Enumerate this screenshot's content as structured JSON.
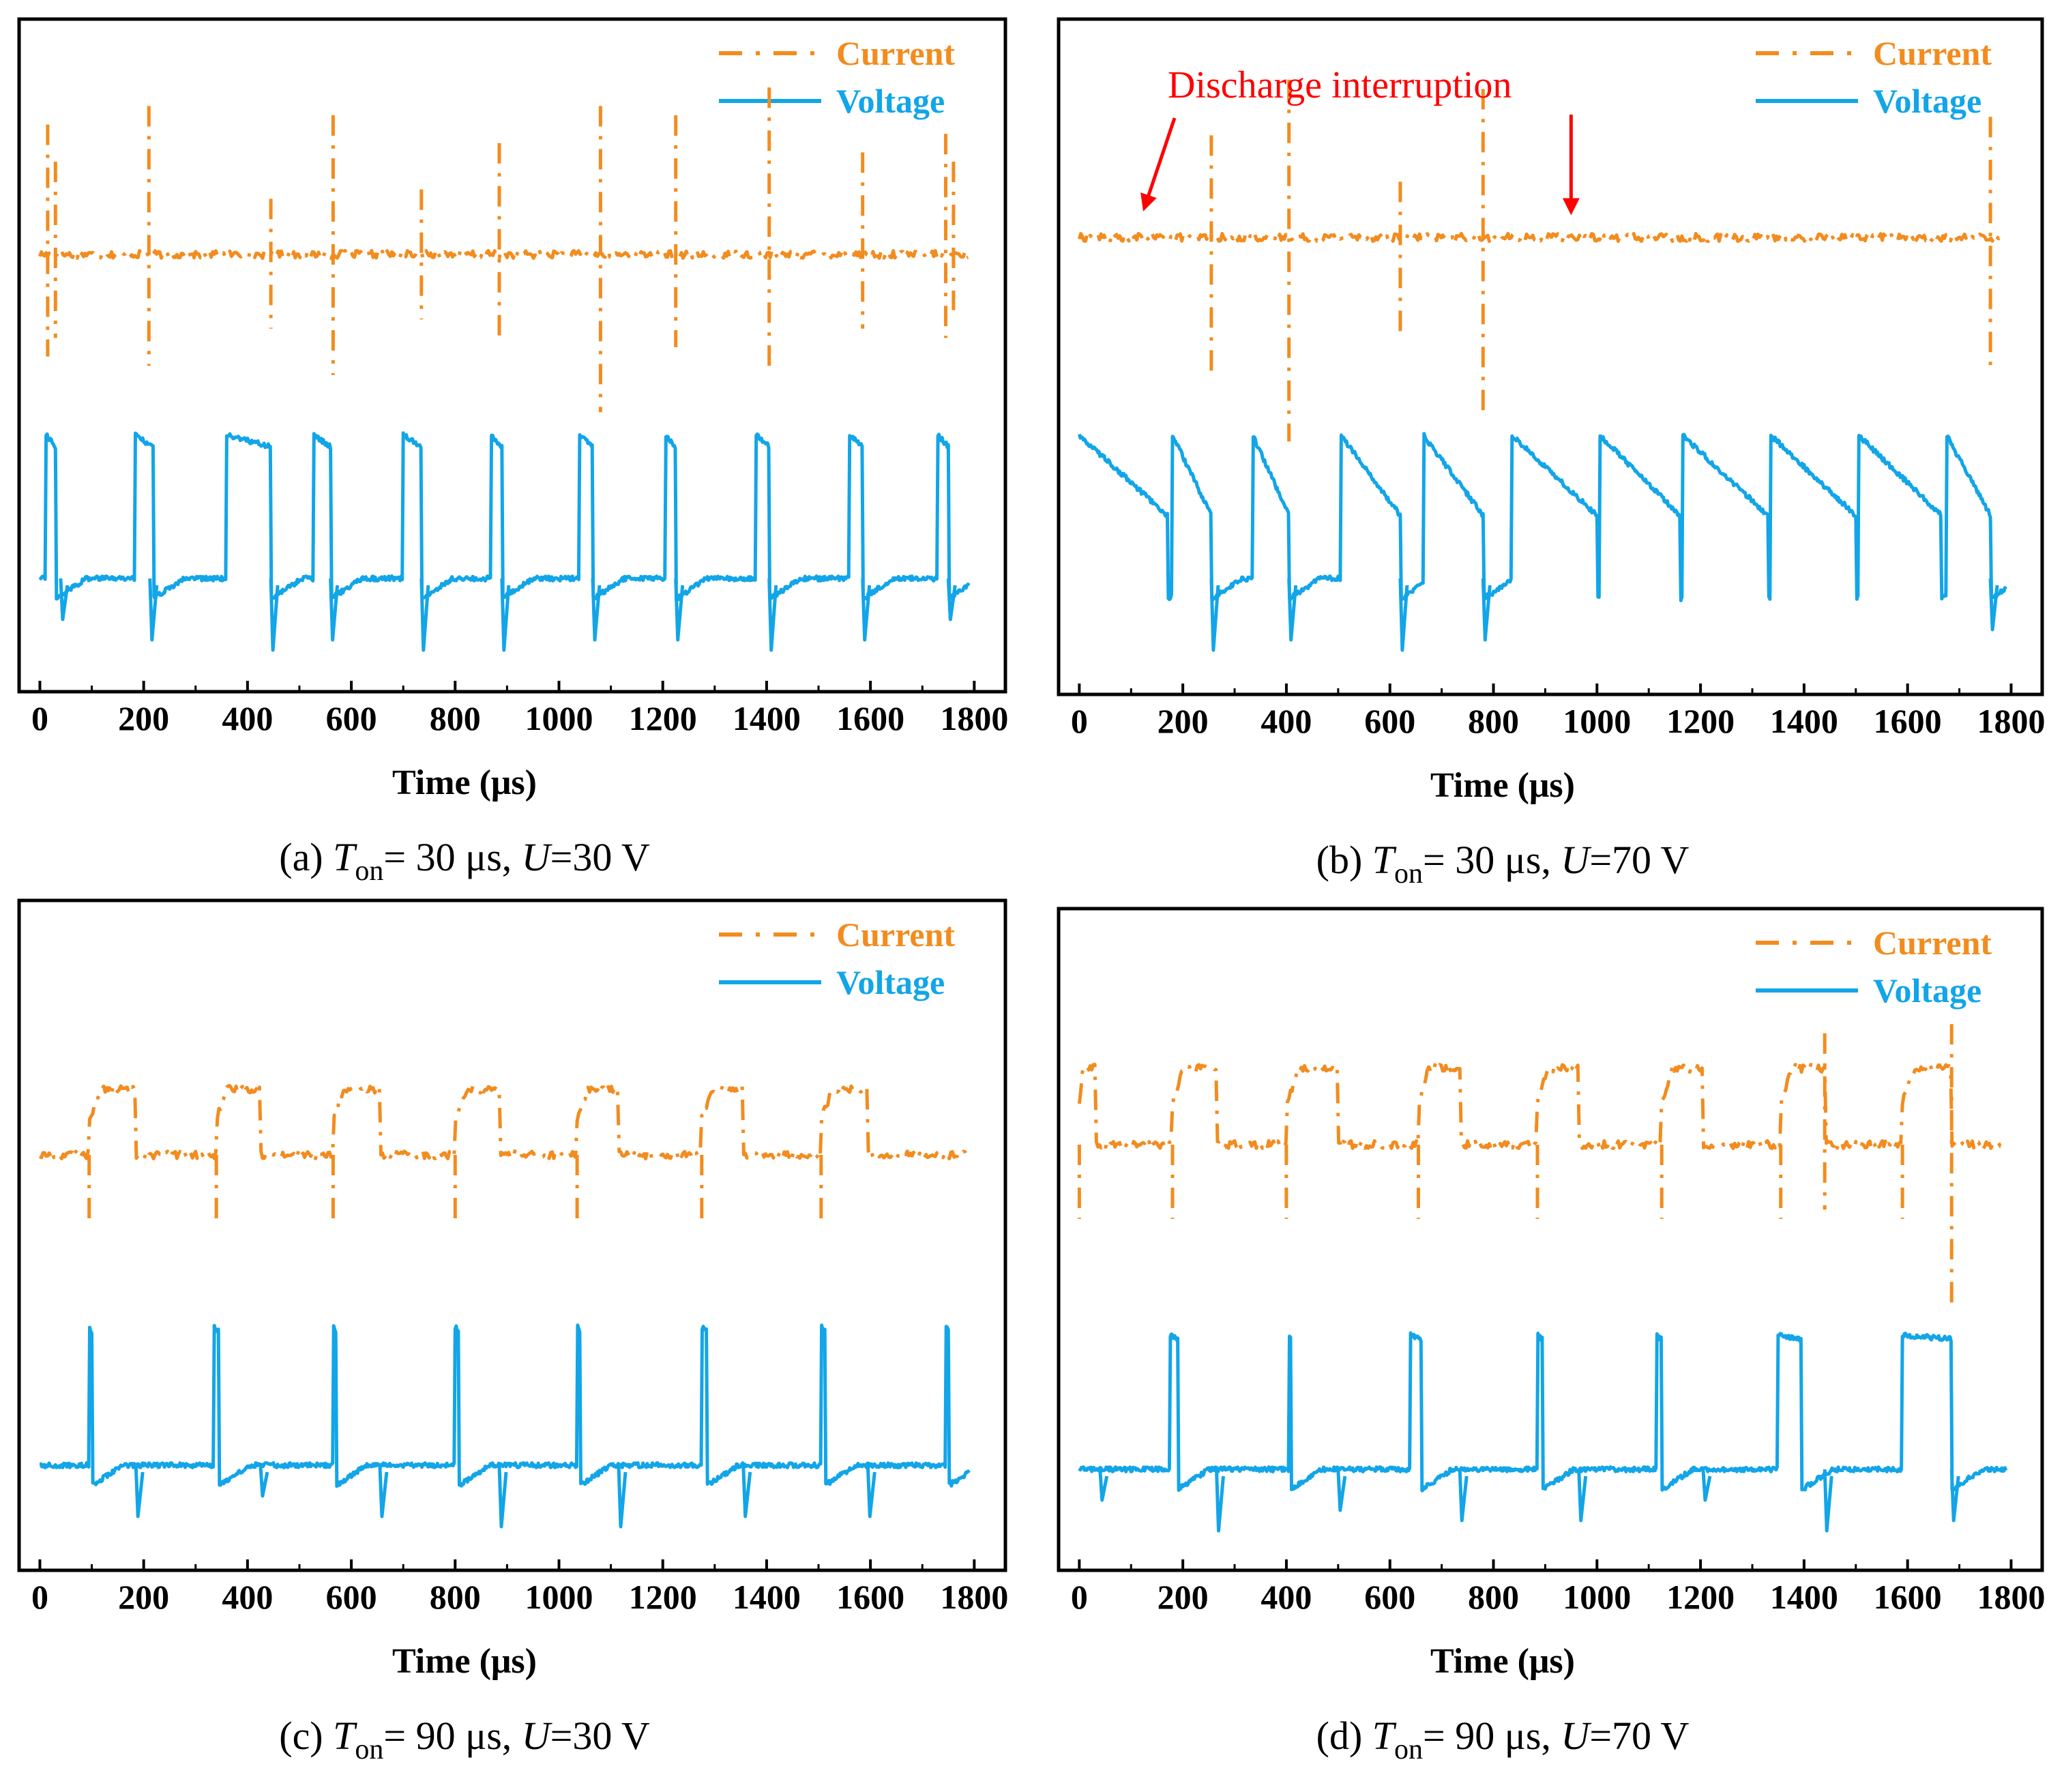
{
  "colors": {
    "current": "#f28c1e",
    "voltage": "#12a5e8",
    "annotation": "#ff0000",
    "axis": "#000000"
  },
  "chart_data": [
    {
      "id": "a",
      "type": "line",
      "caption": {
        "prefix": "(a) ",
        "T": "T",
        "sub": "on",
        "mid": "= 30 μs, ",
        "U": "U",
        "suffix": "=30 V"
      },
      "xlabel": "Time (μs)",
      "xlim": [
        -40,
        1860
      ],
      "xticks": [
        "0",
        "200",
        "400",
        "600",
        "800",
        "1000",
        "1200",
        "1400",
        "1600",
        "1800"
      ],
      "ylabel": "",
      "legend": [
        "Current",
        "Voltage"
      ],
      "current": {
        "baseline": 0,
        "spikes": [
          [
            15,
            0.7,
            -0.55
          ],
          [
            30,
            0.5,
            -0.45
          ],
          [
            210,
            0.8,
            -0.6
          ],
          [
            445,
            0.3,
            -0.4
          ],
          [
            565,
            0.75,
            -0.65
          ],
          [
            735,
            0.35,
            -0.35
          ],
          [
            885,
            0.6,
            -0.45
          ],
          [
            1080,
            0.8,
            -0.85
          ],
          [
            1225,
            0.75,
            -0.5
          ],
          [
            1405,
            0.9,
            -0.65
          ],
          [
            1585,
            0.55,
            -0.4
          ],
          [
            1745,
            0.65,
            -0.45
          ],
          [
            1760,
            0.5,
            -0.3
          ]
        ]
      },
      "voltage": {
        "high": 1.0,
        "low": 0.4,
        "pulses": [
          [
            12,
            30
          ],
          [
            183,
            218
          ],
          [
            360,
            445
          ],
          [
            527,
            560
          ],
          [
            700,
            735
          ],
          [
            870,
            890
          ],
          [
            1040,
            1065
          ],
          [
            1205,
            1225
          ],
          [
            1380,
            1405
          ],
          [
            1560,
            1585
          ],
          [
            1730,
            1750
          ]
        ],
        "dips": [
          [
            40,
            0.2
          ],
          [
            212,
            0.3
          ],
          [
            445,
            0.35
          ],
          [
            560,
            0.3
          ],
          [
            735,
            0.35
          ],
          [
            890,
            0.35
          ],
          [
            1065,
            0.3
          ],
          [
            1225,
            0.3
          ],
          [
            1405,
            0.35
          ],
          [
            1585,
            0.3
          ],
          [
            1750,
            0.2
          ]
        ],
        "decay": 0.05
      }
    },
    {
      "id": "b",
      "type": "line",
      "caption": {
        "prefix": "(b) ",
        "T": "T",
        "sub": "on",
        "mid": "= 30 μs, ",
        "U": "U",
        "suffix": "=70 V"
      },
      "xlabel": "Time (μs)",
      "xlim": [
        -40,
        1860
      ],
      "xticks": [
        "0",
        "200",
        "400",
        "600",
        "800",
        "1000",
        "1200",
        "1400",
        "1600",
        "1800"
      ],
      "ylabel": "",
      "legend": [
        "Current",
        "Voltage"
      ],
      "annotation": "Discharge interruption",
      "current": {
        "baseline": 0,
        "spikes": [
          [
            255,
            0.55,
            -0.75
          ],
          [
            405,
            0.85,
            -1.1
          ],
          [
            620,
            0.3,
            -0.55
          ],
          [
            780,
            0.8,
            -0.95
          ],
          [
            1760,
            0.65,
            -0.7
          ]
        ]
      },
      "voltage": {
        "high": 1.0,
        "low": 0.4,
        "pulses": [
          [
            0,
            170
          ],
          [
            180,
            255
          ],
          [
            335,
            405
          ],
          [
            505,
            620
          ],
          [
            665,
            780
          ],
          [
            835,
            1000
          ],
          [
            1005,
            1160
          ],
          [
            1165,
            1330
          ],
          [
            1335,
            1500
          ],
          [
            1505,
            1665
          ],
          [
            1675,
            1760
          ]
        ],
        "dips": [
          [
            255,
            0.35
          ],
          [
            405,
            0.3
          ],
          [
            620,
            0.35
          ],
          [
            780,
            0.3
          ],
          [
            1760,
            0.25
          ]
        ],
        "decay": 0.35
      }
    },
    {
      "id": "c",
      "type": "line",
      "caption": {
        "prefix": "(c) ",
        "T": "T",
        "sub": "on",
        "mid": "= 90 μs, ",
        "U": "U",
        "suffix": "=30 V"
      },
      "xlabel": "Time (μs)",
      "xlim": [
        -40,
        1860
      ],
      "xticks": [
        "0",
        "200",
        "400",
        "600",
        "800",
        "1000",
        "1200",
        "1400",
        "1600",
        "1800"
      ],
      "ylabel": "",
      "legend": [
        "Current",
        "Voltage"
      ],
      "current": {
        "baseline": 0,
        "plateau": 0.6,
        "dip": -0.35,
        "pulses": [
          [
            95,
            185
          ],
          [
            340,
            425
          ],
          [
            565,
            655
          ],
          [
            800,
            885
          ],
          [
            1035,
            1115
          ],
          [
            1275,
            1355
          ],
          [
            1505,
            1595
          ]
        ]
      },
      "voltage": {
        "high": 1.0,
        "low": 0.4,
        "pulses": [
          [
            95,
            100
          ],
          [
            335,
            345
          ],
          [
            565,
            570
          ],
          [
            800,
            807
          ],
          [
            1035,
            1040
          ],
          [
            1275,
            1285
          ],
          [
            1505,
            1512
          ],
          [
            1745,
            1750
          ]
        ],
        "dips": [
          [
            185,
            0.25
          ],
          [
            425,
            0.15
          ],
          [
            655,
            0.25
          ],
          [
            885,
            0.3
          ],
          [
            1115,
            0.3
          ],
          [
            1355,
            0.25
          ],
          [
            1595,
            0.25
          ]
        ],
        "decay": 0.02
      }
    },
    {
      "id": "d",
      "type": "line",
      "caption": {
        "prefix": "(d) ",
        "T": "T",
        "sub": "on",
        "mid": "= 90 μs, ",
        "U": "U",
        "suffix": "=70 V"
      },
      "xlabel": "Time (μs)",
      "xlim": [
        -40,
        1860
      ],
      "xticks": [
        "0",
        "200",
        "400",
        "600",
        "800",
        "1000",
        "1200",
        "1400",
        "1600",
        "1800"
      ],
      "ylabel": "",
      "legend": [
        "Current",
        "Voltage"
      ],
      "current": {
        "baseline": 0,
        "plateau": 0.7,
        "dip": -0.4,
        "pulses": [
          [
            0,
            30
          ],
          [
            180,
            265
          ],
          [
            400,
            500
          ],
          [
            655,
            735
          ],
          [
            885,
            965
          ],
          [
            1125,
            1205
          ],
          [
            1355,
            1440
          ],
          [
            1590,
            1685
          ]
        ],
        "extra_spikes": [
          [
            1440,
            0.6,
            -0.35
          ],
          [
            1685,
            0.65,
            -0.85
          ]
        ]
      },
      "voltage": {
        "high": 1.0,
        "low": 0.4,
        "pulses": [
          [
            175,
            190
          ],
          [
            405,
            408
          ],
          [
            640,
            660
          ],
          [
            885,
            895
          ],
          [
            1115,
            1125
          ],
          [
            1350,
            1395
          ],
          [
            1590,
            1685
          ]
        ],
        "dips": [
          [
            40,
            0.15
          ],
          [
            265,
            0.3
          ],
          [
            500,
            0.2
          ],
          [
            735,
            0.25
          ],
          [
            965,
            0.25
          ],
          [
            1205,
            0.15
          ],
          [
            1440,
            0.3
          ],
          [
            1685,
            0.25
          ]
        ],
        "decay": 0.02
      }
    }
  ]
}
